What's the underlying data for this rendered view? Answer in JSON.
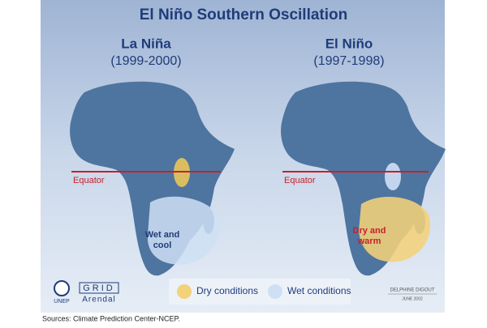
{
  "header": {
    "title": "El Niño Southern Oscillation"
  },
  "panels": [
    {
      "name": "La Niña",
      "period": "(1999-2000)",
      "equator": "Equator",
      "region_label": "Wet and cool"
    },
    {
      "name": "El Niño",
      "period": "(1997-1998)",
      "equator": "Equator",
      "region_label": "Dry and warm"
    }
  ],
  "legend": {
    "items": [
      "Dry conditions",
      "Wet conditions"
    ]
  },
  "logos": {
    "unep": "UNEP",
    "grid": "GRID",
    "arendal": "Arendal"
  },
  "credit": {
    "author": "DELPHINE DIGOUT",
    "date": "JUNE 2002"
  },
  "source": "Sources: Climate Prediction Center-NCEP."
}
